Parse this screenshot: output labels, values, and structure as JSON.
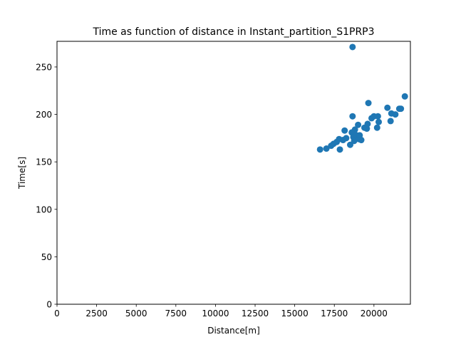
{
  "chart_data": {
    "type": "scatter",
    "title": "Time as function of distance in Instant_partition_S1PRP3",
    "xlabel": "Distance[m]",
    "ylabel": "Time[s]",
    "xlim": [
      0,
      22300
    ],
    "ylim": [
      0,
      277
    ],
    "xticks": [
      0,
      2500,
      5000,
      7500,
      10000,
      12500,
      15000,
      17500,
      20000
    ],
    "yticks": [
      0,
      50,
      100,
      150,
      200,
      250
    ],
    "grid": false,
    "marker_color": "#1f77b4",
    "points": [
      {
        "x": 16600,
        "y": 163
      },
      {
        "x": 17000,
        "y": 164
      },
      {
        "x": 17300,
        "y": 167
      },
      {
        "x": 17450,
        "y": 169
      },
      {
        "x": 17650,
        "y": 171
      },
      {
        "x": 17800,
        "y": 174
      },
      {
        "x": 17850,
        "y": 163
      },
      {
        "x": 18050,
        "y": 173
      },
      {
        "x": 18150,
        "y": 183
      },
      {
        "x": 18250,
        "y": 175
      },
      {
        "x": 18500,
        "y": 168
      },
      {
        "x": 18600,
        "y": 181
      },
      {
        "x": 18650,
        "y": 198
      },
      {
        "x": 18700,
        "y": 176
      },
      {
        "x": 18750,
        "y": 172
      },
      {
        "x": 18800,
        "y": 184
      },
      {
        "x": 18900,
        "y": 178
      },
      {
        "x": 19000,
        "y": 189
      },
      {
        "x": 19050,
        "y": 174
      },
      {
        "x": 19100,
        "y": 178
      },
      {
        "x": 19200,
        "y": 173
      },
      {
        "x": 19400,
        "y": 186
      },
      {
        "x": 19550,
        "y": 185
      },
      {
        "x": 19600,
        "y": 190
      },
      {
        "x": 19650,
        "y": 212
      },
      {
        "x": 19850,
        "y": 196
      },
      {
        "x": 20000,
        "y": 198
      },
      {
        "x": 20200,
        "y": 186
      },
      {
        "x": 20250,
        "y": 198
      },
      {
        "x": 20300,
        "y": 192
      },
      {
        "x": 20850,
        "y": 207
      },
      {
        "x": 21050,
        "y": 193
      },
      {
        "x": 21100,
        "y": 201
      },
      {
        "x": 21350,
        "y": 200
      },
      {
        "x": 21600,
        "y": 206
      },
      {
        "x": 21700,
        "y": 206
      },
      {
        "x": 21950,
        "y": 219
      },
      {
        "x": 18650,
        "y": 271
      }
    ]
  }
}
